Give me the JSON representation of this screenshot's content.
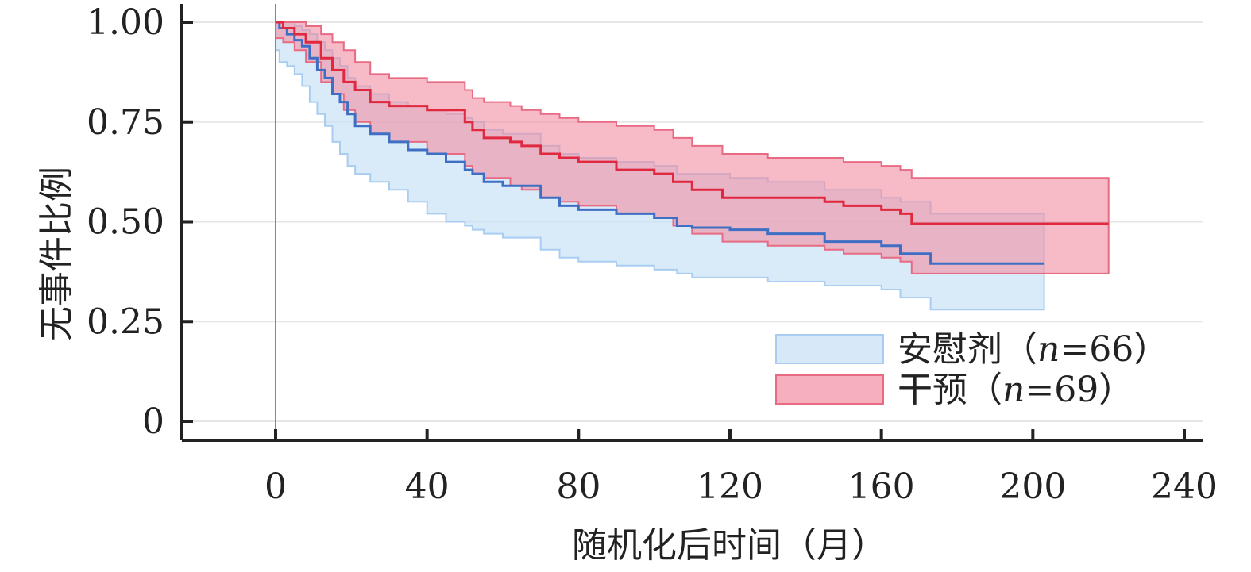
{
  "chart_data": {
    "type": "line",
    "subtype": "kaplan-meier",
    "xlabel": "随机化后时间（月）",
    "ylabel": "无事件比例",
    "xlim": [
      0,
      240
    ],
    "ylim": [
      0,
      1
    ],
    "x_ticks": [
      0,
      40,
      80,
      120,
      160,
      200,
      240
    ],
    "x_tick_labels": [
      "0",
      "40",
      "80",
      "120",
      "160",
      "200",
      "240"
    ],
    "y_ticks": [
      0,
      0.25,
      0.5,
      0.75,
      1.0
    ],
    "y_tick_labels": [
      "0",
      "0.25",
      "0.50",
      "0.75",
      "1.00"
    ],
    "grid": true,
    "legend_position": "bottom-right",
    "series": [
      {
        "name": "安慰剂",
        "legend_prefix": "安慰剂（",
        "legend_n": "n",
        "legend_suffix": "=66）",
        "line_color": "#3f6fc4",
        "band_fill": "#c9e1f6",
        "band_stroke": "#a9cdf0",
        "x": [
          0,
          1,
          3,
          5,
          7,
          9,
          11,
          13,
          15,
          17,
          19,
          21,
          25,
          30,
          35,
          40,
          45,
          50,
          52,
          55,
          60,
          70,
          75,
          80,
          90,
          100,
          106,
          110,
          120,
          130,
          145,
          160,
          165,
          173,
          190,
          203
        ],
        "y": [
          1.0,
          0.985,
          0.97,
          0.955,
          0.94,
          0.91,
          0.88,
          0.86,
          0.82,
          0.8,
          0.77,
          0.74,
          0.72,
          0.7,
          0.68,
          0.67,
          0.65,
          0.63,
          0.62,
          0.6,
          0.59,
          0.56,
          0.54,
          0.53,
          0.52,
          0.51,
          0.49,
          0.485,
          0.48,
          0.47,
          0.45,
          0.44,
          0.42,
          0.395,
          0.395,
          0.395
        ],
        "lower": [
          0.93,
          0.9,
          0.89,
          0.87,
          0.84,
          0.8,
          0.77,
          0.74,
          0.7,
          0.67,
          0.64,
          0.62,
          0.6,
          0.58,
          0.55,
          0.52,
          0.5,
          0.49,
          0.48,
          0.47,
          0.46,
          0.43,
          0.41,
          0.4,
          0.39,
          0.38,
          0.37,
          0.36,
          0.36,
          0.35,
          0.34,
          0.33,
          0.31,
          0.28,
          0.28,
          0.28
        ],
        "upper": [
          1.0,
          1.0,
          1.0,
          0.99,
          0.98,
          0.97,
          0.95,
          0.93,
          0.91,
          0.89,
          0.86,
          0.84,
          0.82,
          0.8,
          0.79,
          0.78,
          0.77,
          0.76,
          0.75,
          0.73,
          0.72,
          0.69,
          0.67,
          0.66,
          0.65,
          0.64,
          0.62,
          0.62,
          0.61,
          0.6,
          0.58,
          0.56,
          0.55,
          0.52,
          0.52,
          0.52
        ]
      },
      {
        "name": "干预",
        "legend_prefix": "干预（",
        "legend_n": "n",
        "legend_suffix": "=69）",
        "line_color": "#e0283f",
        "band_fill": "#f28ea1",
        "band_stroke": "#e86b83",
        "x": [
          0,
          2,
          5,
          8,
          12,
          15,
          18,
          21,
          25,
          30,
          40,
          50,
          52,
          55,
          62,
          65,
          70,
          75,
          80,
          90,
          100,
          105,
          110,
          118,
          130,
          145,
          150,
          160,
          165,
          168,
          180,
          200,
          220
        ],
        "y": [
          1.0,
          0.985,
          0.97,
          0.95,
          0.91,
          0.88,
          0.85,
          0.83,
          0.8,
          0.79,
          0.78,
          0.75,
          0.73,
          0.71,
          0.7,
          0.69,
          0.67,
          0.66,
          0.65,
          0.63,
          0.62,
          0.6,
          0.58,
          0.56,
          0.56,
          0.55,
          0.54,
          0.53,
          0.52,
          0.495,
          0.495,
          0.495,
          0.495
        ],
        "lower": [
          0.96,
          0.95,
          0.93,
          0.9,
          0.85,
          0.82,
          0.78,
          0.75,
          0.72,
          0.7,
          0.67,
          0.64,
          0.62,
          0.61,
          0.59,
          0.58,
          0.56,
          0.55,
          0.54,
          0.52,
          0.51,
          0.49,
          0.47,
          0.45,
          0.44,
          0.43,
          0.42,
          0.41,
          0.4,
          0.37,
          0.37,
          0.37,
          0.37
        ],
        "upper": [
          1.0,
          1.0,
          1.0,
          0.99,
          0.97,
          0.95,
          0.93,
          0.9,
          0.87,
          0.86,
          0.85,
          0.83,
          0.81,
          0.8,
          0.79,
          0.78,
          0.77,
          0.76,
          0.75,
          0.74,
          0.73,
          0.71,
          0.69,
          0.67,
          0.66,
          0.66,
          0.65,
          0.64,
          0.63,
          0.61,
          0.61,
          0.61,
          0.61
        ]
      }
    ]
  }
}
